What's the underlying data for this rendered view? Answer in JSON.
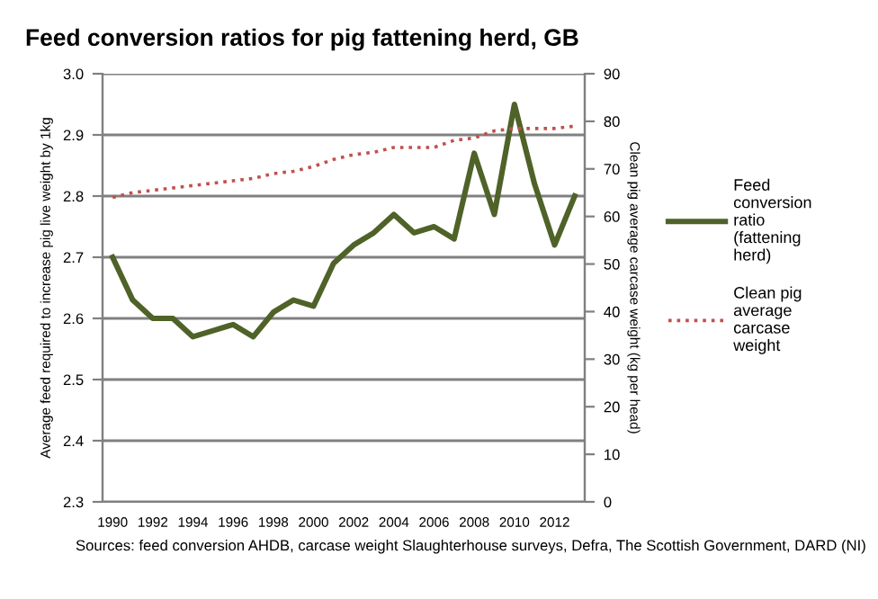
{
  "chart_data": {
    "type": "line",
    "title": "Feed conversion ratios for pig fattening herd, GB",
    "ylabel": "Average feed required to increase pig live weight by 1kg",
    "y2label": "Clean pig average carcase weight (kg per head)",
    "categories": [
      "1990",
      null,
      "1992",
      null,
      "1994",
      null,
      "1996",
      null,
      "1998",
      null,
      "2000",
      null,
      "2002",
      null,
      "2004",
      null,
      "2006",
      null,
      "2008",
      null,
      "2010",
      null,
      "2012",
      null
    ],
    "series": [
      {
        "name": "Feed conversion ratio (fattening herd)",
        "color": "#4f6228",
        "line_style": "solid",
        "values": [
          2.7,
          2.63,
          2.6,
          2.6,
          2.57,
          2.58,
          2.59,
          2.57,
          2.61,
          2.63,
          2.62,
          2.69,
          2.72,
          2.74,
          2.77,
          2.74,
          2.75,
          2.73,
          2.87,
          2.77,
          2.95,
          2.82,
          2.72,
          2.8
        ]
      },
      {
        "name": "Clean pig average carcase weight",
        "color": "#c0504d",
        "line_style": "dotted",
        "axis": "y2",
        "values": [
          64,
          65,
          65.5,
          66,
          66.5,
          67,
          67.5,
          68,
          69,
          69.5,
          70.5,
          72,
          73,
          73.5,
          74.5,
          74.5,
          74.5,
          76,
          76.5,
          78,
          78.5,
          78.5,
          78.5,
          79
        ]
      }
    ],
    "ylim": [
      2.3,
      3.0
    ],
    "yticks": [
      {
        "value": 2.3,
        "label": "2.3"
      },
      {
        "value": 2.4,
        "label": "2.4"
      },
      {
        "value": 2.5,
        "label": "2.5"
      },
      {
        "value": 2.6,
        "label": "2.6"
      },
      {
        "value": 2.7,
        "label": "2.7"
      },
      {
        "value": 2.8,
        "label": "2.8"
      },
      {
        "value": 2.9,
        "label": "2.9"
      },
      {
        "value": 3.0,
        "label": "3.0"
      }
    ],
    "y2lim": [
      0,
      90
    ],
    "y2ticks": [
      0,
      10,
      20,
      30,
      40,
      50,
      60,
      70,
      80,
      90
    ],
    "grid": "y",
    "legend": "right",
    "marker": "none",
    "annotations": [
      "Sources: feed conversion AHDB, carcase weight Slaughterhouse surveys, Defra, The Scottish Government, DARD (NI)"
    ]
  }
}
